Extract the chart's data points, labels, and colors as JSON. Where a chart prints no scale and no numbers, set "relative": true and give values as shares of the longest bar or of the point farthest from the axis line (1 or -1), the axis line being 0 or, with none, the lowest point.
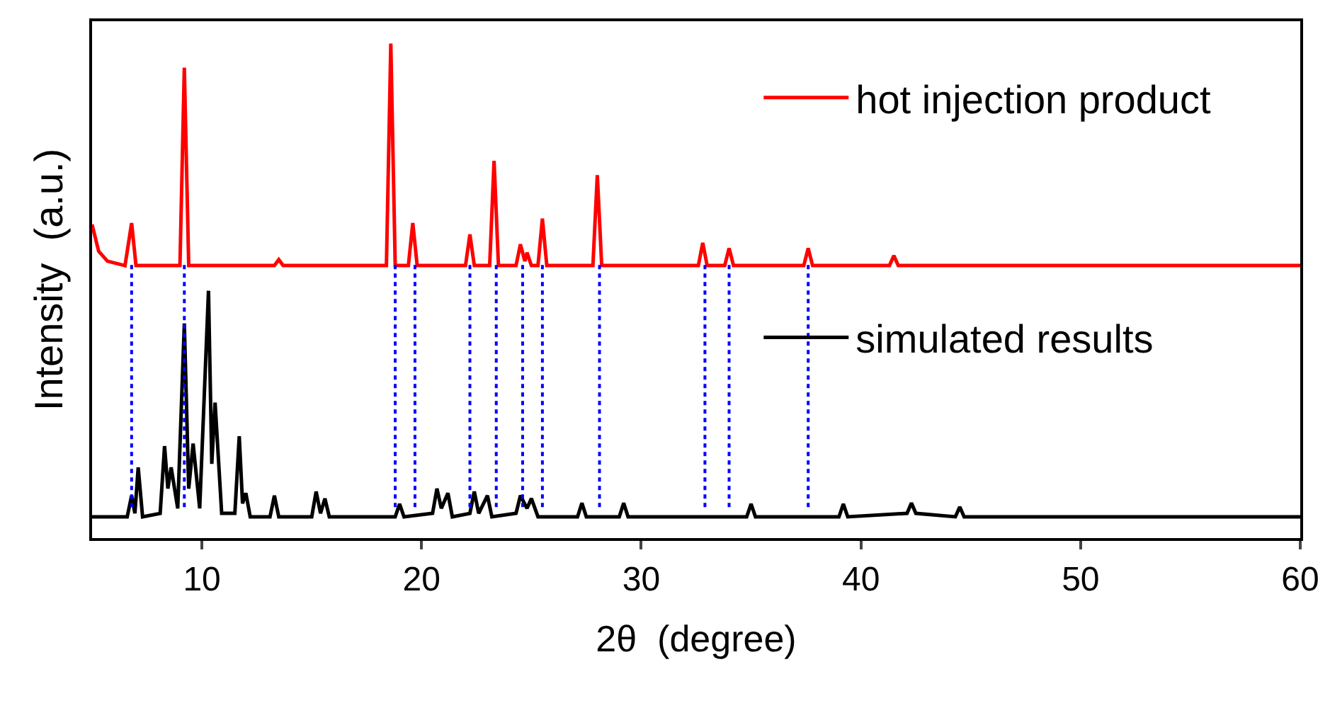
{
  "chart_data": {
    "type": "line",
    "relative": true,
    "xlabel": "2θ  (degree)",
    "ylabel": "Intensity  (a.u.)",
    "xlim": [
      5,
      60
    ],
    "xticks": [
      10,
      20,
      30,
      40,
      50,
      60
    ],
    "legend": "right",
    "grid": false,
    "series": [
      {
        "name": "hot injection product",
        "color": "#ff0000",
        "x": [
          5.0,
          5.3,
          5.7,
          6.5,
          6.8,
          7.0,
          9.0,
          9.2,
          9.4,
          13.3,
          13.5,
          13.7,
          18.4,
          18.6,
          18.8,
          19.4,
          19.6,
          19.8,
          22.0,
          22.2,
          22.4,
          23.1,
          23.3,
          23.5,
          24.3,
          24.5,
          24.7,
          24.8,
          25.0,
          25.3,
          25.5,
          25.7,
          27.8,
          28.0,
          28.2,
          32.6,
          32.8,
          33.0,
          33.8,
          34.0,
          34.2,
          37.4,
          37.6,
          37.8,
          41.3,
          41.5,
          41.7,
          60
        ],
        "values": [
          0.634,
          0.58,
          0.56,
          0.551,
          0.637,
          0.551,
          0.551,
          0.951,
          0.551,
          0.551,
          0.563,
          0.551,
          0.551,
          1.0,
          0.551,
          0.551,
          0.637,
          0.551,
          0.551,
          0.614,
          0.551,
          0.551,
          0.763,
          0.551,
          0.551,
          0.594,
          0.56,
          0.577,
          0.551,
          0.551,
          0.646,
          0.551,
          0.551,
          0.734,
          0.551,
          0.551,
          0.597,
          0.551,
          0.551,
          0.586,
          0.551,
          0.551,
          0.586,
          0.551,
          0.551,
          0.571,
          0.551,
          0.551
        ]
      },
      {
        "name": "simulated results",
        "color": "#000000",
        "x": [
          5,
          6.6,
          6.8,
          6.95,
          7.1,
          7.3,
          8.1,
          8.3,
          8.45,
          8.6,
          8.9,
          9.2,
          9.4,
          9.6,
          9.9,
          10.3,
          10.45,
          10.6,
          10.9,
          11.5,
          11.7,
          11.85,
          12.0,
          12.2,
          13.1,
          13.3,
          13.5,
          15.0,
          15.2,
          15.4,
          15.6,
          15.8,
          18.8,
          19.0,
          19.2,
          20.5,
          20.7,
          20.9,
          21.2,
          21.4,
          22.2,
          22.4,
          22.6,
          23.0,
          23.2,
          24.3,
          24.5,
          24.8,
          25.0,
          25.3,
          27.1,
          27.3,
          27.5,
          29.0,
          29.2,
          29.4,
          34.8,
          35.0,
          35.2,
          39.0,
          39.2,
          39.4,
          42.1,
          42.3,
          42.5,
          44.3,
          44.5,
          44.7,
          60
        ],
        "values": [
          0.043,
          0.043,
          0.086,
          0.05,
          0.143,
          0.043,
          0.05,
          0.186,
          0.1,
          0.143,
          0.06,
          0.434,
          0.1,
          0.191,
          0.06,
          0.5,
          0.15,
          0.274,
          0.05,
          0.05,
          0.206,
          0.07,
          0.091,
          0.043,
          0.043,
          0.086,
          0.043,
          0.043,
          0.094,
          0.05,
          0.08,
          0.043,
          0.043,
          0.069,
          0.043,
          0.05,
          0.1,
          0.06,
          0.091,
          0.043,
          0.05,
          0.094,
          0.05,
          0.086,
          0.043,
          0.05,
          0.086,
          0.06,
          0.08,
          0.043,
          0.043,
          0.071,
          0.043,
          0.043,
          0.071,
          0.043,
          0.043,
          0.069,
          0.043,
          0.043,
          0.069,
          0.043,
          0.05,
          0.071,
          0.05,
          0.043,
          0.063,
          0.043,
          0.043
        ]
      }
    ],
    "ref_lines": [
      {
        "axis": "x",
        "value": 6.8,
        "color": "#0000ff",
        "line_style": "dotted"
      },
      {
        "axis": "x",
        "value": 9.2,
        "color": "#0000ff",
        "line_style": "dotted"
      },
      {
        "axis": "x",
        "value": 18.8,
        "color": "#0000ff",
        "line_style": "dotted"
      },
      {
        "axis": "x",
        "value": 19.7,
        "color": "#0000ff",
        "line_style": "dotted"
      },
      {
        "axis": "x",
        "value": 22.2,
        "color": "#0000ff",
        "line_style": "dotted"
      },
      {
        "axis": "x",
        "value": 23.4,
        "color": "#0000ff",
        "line_style": "dotted"
      },
      {
        "axis": "x",
        "value": 24.6,
        "color": "#0000ff",
        "line_style": "dotted"
      },
      {
        "axis": "x",
        "value": 25.5,
        "color": "#0000ff",
        "line_style": "dotted"
      },
      {
        "axis": "x",
        "value": 28.1,
        "color": "#0000ff",
        "line_style": "dotted"
      },
      {
        "axis": "x",
        "value": 32.9,
        "color": "#0000ff",
        "line_style": "dotted"
      },
      {
        "axis": "x",
        "value": 34.0,
        "color": "#0000ff",
        "line_style": "dotted"
      },
      {
        "axis": "x",
        "value": 37.6,
        "color": "#0000ff",
        "line_style": "dotted"
      }
    ]
  }
}
